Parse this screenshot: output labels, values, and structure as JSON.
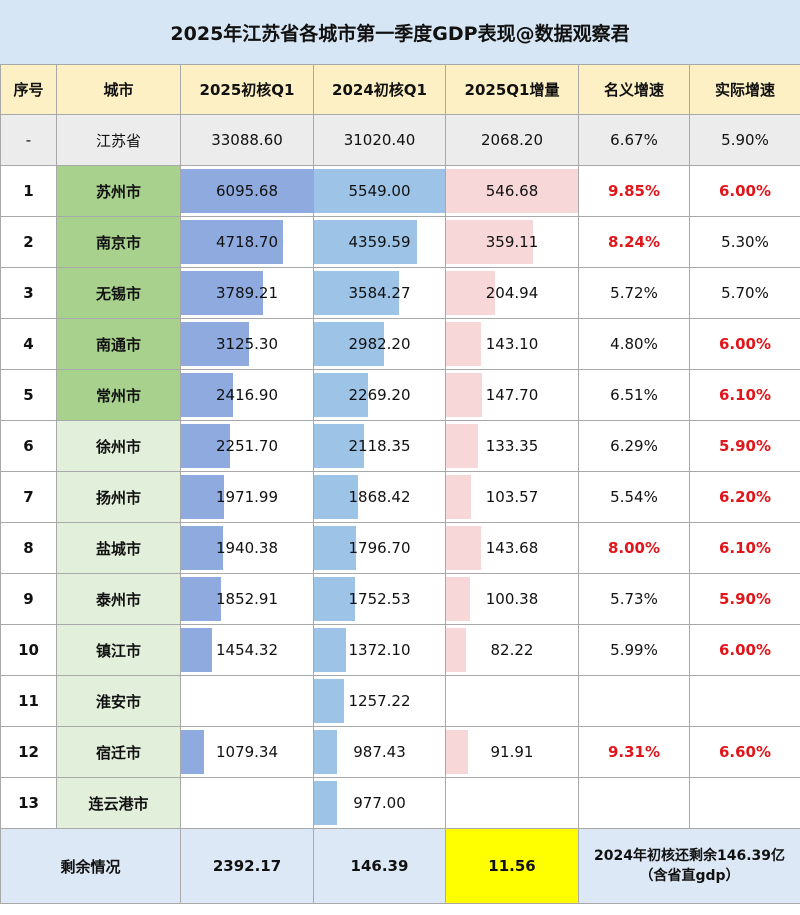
{
  "title": "2025年江苏省各城市第一季度GDP表现@数据观察君",
  "headers": [
    "序号",
    "城市",
    "2025初核Q1",
    "2024初核Q1",
    "2025Q1增量",
    "名义增速",
    "实际增速"
  ],
  "province": {
    "idx": "-",
    "city": "江苏省",
    "q2025": "33088.60",
    "q2024": "31020.40",
    "inc": "2068.20",
    "nom": "6.67%",
    "real": "5.90%"
  },
  "colors": {
    "nominal_highlight": "#e0161b",
    "top5_city_bg": "#a9d18e",
    "other_city_bg": "#e2efda",
    "bar_2025": "#8eaade",
    "bar_2024": "#9dc3e6",
    "bar_increase": "#f8d7d9",
    "remainder_highlight": "#ffff00"
  },
  "rows": [
    {
      "idx": "1",
      "city": "苏州市",
      "q2025": "6095.68",
      "q2024": "5549.00",
      "inc": "546.68",
      "nom": "9.85%",
      "real": "6.00%",
      "nom_red": true,
      "real_red": true,
      "top5": true
    },
    {
      "idx": "2",
      "city": "南京市",
      "q2025": "4718.70",
      "q2024": "4359.59",
      "inc": "359.11",
      "nom": "8.24%",
      "real": "5.30%",
      "nom_red": true,
      "real_red": false,
      "top5": true
    },
    {
      "idx": "3",
      "city": "无锡市",
      "q2025": "3789.21",
      "q2024": "3584.27",
      "inc": "204.94",
      "nom": "5.72%",
      "real": "5.70%",
      "nom_red": false,
      "real_red": false,
      "top5": true
    },
    {
      "idx": "4",
      "city": "南通市",
      "q2025": "3125.30",
      "q2024": "2982.20",
      "inc": "143.10",
      "nom": "4.80%",
      "real": "6.00%",
      "nom_red": false,
      "real_red": true,
      "top5": true
    },
    {
      "idx": "5",
      "city": "常州市",
      "q2025": "2416.90",
      "q2024": "2269.20",
      "inc": "147.70",
      "nom": "6.51%",
      "real": "6.10%",
      "nom_red": false,
      "real_red": true,
      "top5": true
    },
    {
      "idx": "6",
      "city": "徐州市",
      "q2025": "2251.70",
      "q2024": "2118.35",
      "inc": "133.35",
      "nom": "6.29%",
      "real": "5.90%",
      "nom_red": false,
      "real_red": true,
      "top5": false
    },
    {
      "idx": "7",
      "city": "扬州市",
      "q2025": "1971.99",
      "q2024": "1868.42",
      "inc": "103.57",
      "nom": "5.54%",
      "real": "6.20%",
      "nom_red": false,
      "real_red": true,
      "top5": false
    },
    {
      "idx": "8",
      "city": "盐城市",
      "q2025": "1940.38",
      "q2024": "1796.70",
      "inc": "143.68",
      "nom": "8.00%",
      "real": "6.10%",
      "nom_red": true,
      "real_red": true,
      "top5": false
    },
    {
      "idx": "9",
      "city": "泰州市",
      "q2025": "1852.91",
      "q2024": "1752.53",
      "inc": "100.38",
      "nom": "5.73%",
      "real": "5.90%",
      "nom_red": false,
      "real_red": true,
      "top5": false
    },
    {
      "idx": "10",
      "city": "镇江市",
      "q2025": "1454.32",
      "q2024": "1372.10",
      "inc": "82.22",
      "nom": "5.99%",
      "real": "6.00%",
      "nom_red": false,
      "real_red": true,
      "top5": false
    },
    {
      "idx": "11",
      "city": "淮安市",
      "q2025": "",
      "q2024": "1257.22",
      "inc": "",
      "nom": "",
      "real": "",
      "nom_red": false,
      "real_red": false,
      "top5": false
    },
    {
      "idx": "12",
      "city": "宿迁市",
      "q2025": "1079.34",
      "q2024": "987.43",
      "inc": "91.91",
      "nom": "9.31%",
      "real": "6.60%",
      "nom_red": true,
      "real_red": true,
      "top5": false
    },
    {
      "idx": "13",
      "city": "连云港市",
      "q2025": "",
      "q2024": "977.00",
      "inc": "",
      "nom": "",
      "real": "",
      "nom_red": false,
      "real_red": false,
      "top5": false
    }
  ],
  "remainder": {
    "label": "剩余情况",
    "q2025": "2392.17",
    "q2024": "146.39",
    "inc": "11.56",
    "note_line1": "2024年初核还剩余146.39亿",
    "note_line2": "（含省直gdp）"
  }
}
